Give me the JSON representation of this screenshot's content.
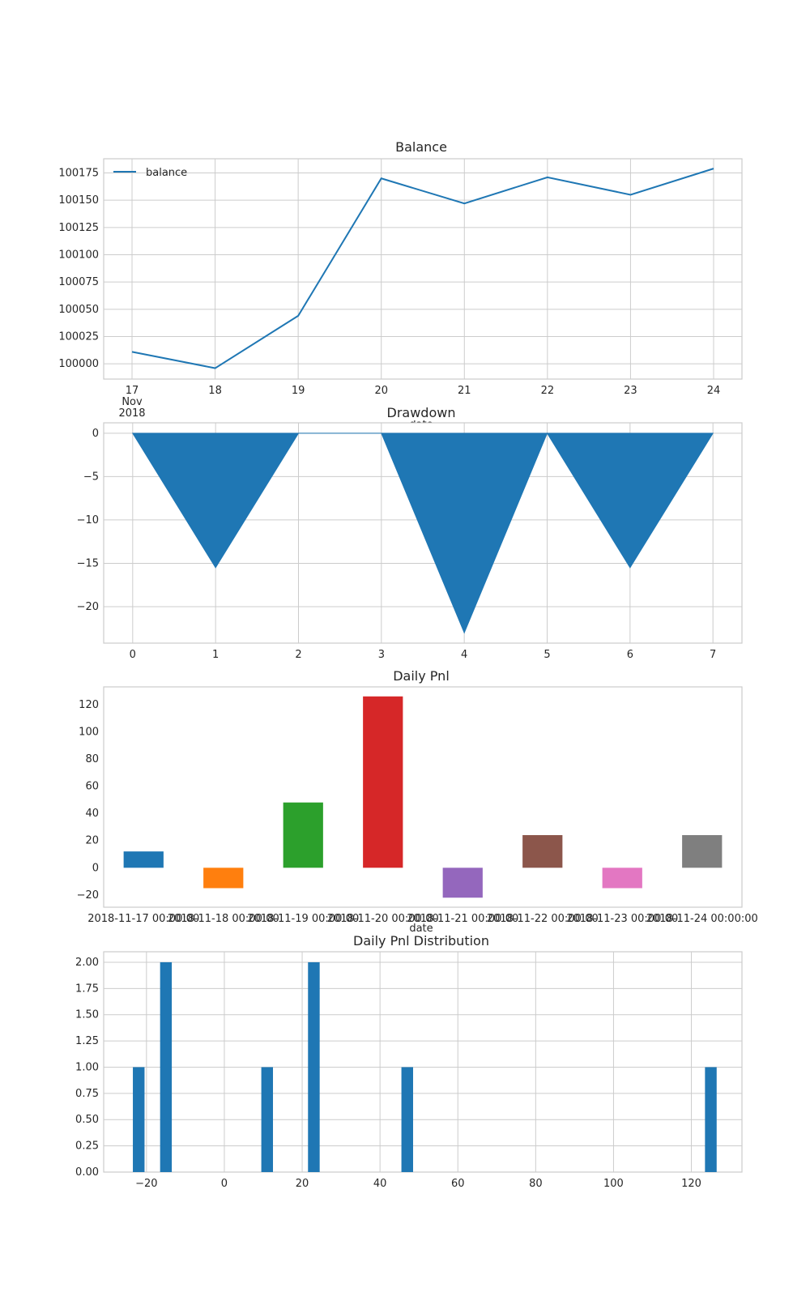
{
  "chart_data": [
    {
      "type": "line",
      "title": "Balance",
      "xlabel": "date",
      "ylabel": "",
      "x": [
        "2018-11-17",
        "2018-11-18",
        "2018-11-19",
        "2018-11-20",
        "2018-11-21",
        "2018-11-22",
        "2018-11-23",
        "2018-11-24"
      ],
      "x_tick_labels": [
        "17\nNov\n2018",
        "18",
        "19",
        "20",
        "21",
        "22",
        "23",
        "24"
      ],
      "series": [
        {
          "name": "balance",
          "values": [
            100011,
            99996,
            100044,
            100170,
            100147,
            100171,
            100155,
            100179
          ]
        }
      ],
      "ylim": [
        99986,
        100188
      ],
      "y_ticks": [
        100000,
        100025,
        100050,
        100075,
        100100,
        100125,
        100150,
        100175
      ],
      "legend": "top-left",
      "grid": true,
      "color": "#1f77b4"
    },
    {
      "type": "area",
      "title": "Drawdown",
      "xlabel": "",
      "ylabel": "",
      "x": [
        0,
        1,
        2,
        3,
        4,
        5,
        6,
        7
      ],
      "values": [
        0,
        -15.5,
        0,
        0,
        -23,
        0,
        -15.5,
        0
      ],
      "xlim": [
        -0.35,
        7.35
      ],
      "ylim": [
        -24.2,
        1.2
      ],
      "y_ticks": [
        0,
        -5,
        -10,
        -15,
        -20
      ],
      "grid": true,
      "color": "#1f77b4"
    },
    {
      "type": "bar",
      "title": "Daily Pnl",
      "xlabel": "date",
      "ylabel": "",
      "categories": [
        "2018-11-17 00:00:00",
        "2018-11-18 00:00:00",
        "2018-11-19 00:00:00",
        "2018-11-20 00:00:00",
        "2018-11-21 00:00:00",
        "2018-11-22 00:00:00",
        "2018-11-23 00:00:00",
        "2018-11-24 00:00:00"
      ],
      "values": [
        12,
        -15,
        48,
        126,
        -22,
        24,
        -15,
        24
      ],
      "ylim": [
        -29,
        133
      ],
      "y_ticks": [
        -20,
        0,
        20,
        40,
        60,
        80,
        100,
        120
      ],
      "colors": [
        "#1f77b4",
        "#ff7f0e",
        "#2ca02c",
        "#d62728",
        "#9467bd",
        "#8c564b",
        "#e377c2",
        "#7f7f7f"
      ],
      "grid": false
    },
    {
      "type": "bar",
      "title": "Daily Pnl Distribution",
      "xlabel": "",
      "ylabel": "",
      "bins": [
        {
          "center": -22,
          "count": 1
        },
        {
          "center": -15,
          "count": 2
        },
        {
          "center": 11,
          "count": 1
        },
        {
          "center": 23,
          "count": 2
        },
        {
          "center": 47,
          "count": 1
        },
        {
          "center": 125,
          "count": 1
        }
      ],
      "bin_width": 3,
      "xlim": [
        -31,
        133
      ],
      "x_ticks": [
        -20,
        0,
        20,
        40,
        60,
        80,
        100,
        120
      ],
      "ylim": [
        0,
        2.1
      ],
      "y_ticks": [
        0,
        0.25,
        0.5,
        0.75,
        1.0,
        1.25,
        1.5,
        1.75,
        2.0
      ],
      "y_tick_labels": [
        "0.00",
        "0.25",
        "0.50",
        "0.75",
        "1.00",
        "1.25",
        "1.50",
        "1.75",
        "2.00"
      ],
      "grid": true,
      "color": "#1f77b4"
    }
  ]
}
